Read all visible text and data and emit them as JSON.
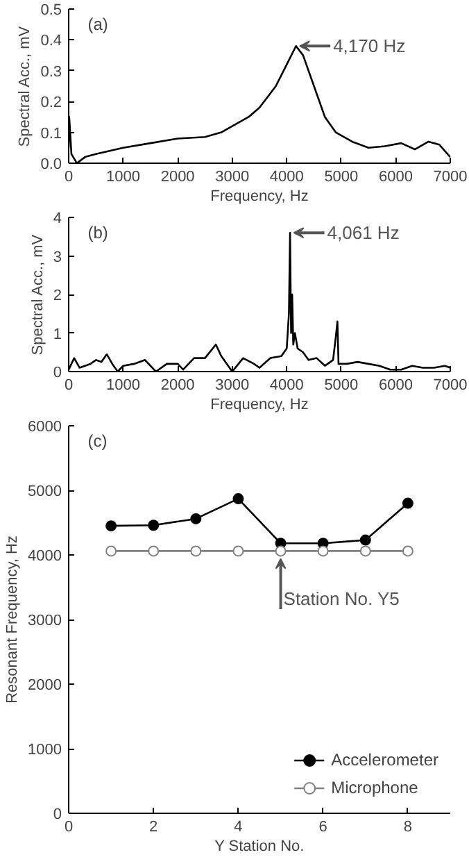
{
  "chart_data": [
    {
      "type": "line",
      "title": "(a)",
      "xlabel": "Frequency, Hz",
      "ylabel": "Spectral Acc., mV",
      "xlim": [
        0,
        7000
      ],
      "ylim": [
        0,
        0.5
      ],
      "xticks": [
        0,
        1000,
        2000,
        3000,
        4000,
        5000,
        6000,
        7000
      ],
      "yticks": [
        {
          "value": 0,
          "label": "0.0"
        },
        0.1,
        0.2,
        0.3,
        0.4,
        0.5
      ],
      "grid": false,
      "legend": false,
      "marker": "none",
      "x": [
        0,
        10,
        50,
        150,
        300,
        500,
        1000,
        1500,
        2000,
        2500,
        2800,
        3000,
        3300,
        3500,
        3800,
        4000,
        4170,
        4300,
        4500,
        4700,
        4900,
        5200,
        5500,
        5800,
        6100,
        6350,
        6600,
        6800,
        7000
      ],
      "series": [
        {
          "color": "#000000",
          "values": [
            0.05,
            0.15,
            0.03,
            0.0,
            0.02,
            0.03,
            0.05,
            0.065,
            0.08,
            0.085,
            0.1,
            0.12,
            0.15,
            0.18,
            0.25,
            0.32,
            0.38,
            0.35,
            0.25,
            0.15,
            0.1,
            0.07,
            0.05,
            0.055,
            0.065,
            0.045,
            0.07,
            0.06,
            0.02
          ]
        }
      ],
      "annotations": [
        {
          "text": "4,170 Hz",
          "x": 4170,
          "y": 0.38
        }
      ]
    },
    {
      "type": "line",
      "title": "(b)",
      "xlabel": "Frequency, Hz",
      "ylabel": "Spectral Acc., mV",
      "xlim": [
        0,
        7000
      ],
      "ylim": [
        0,
        4
      ],
      "xticks": [
        0,
        1000,
        2000,
        3000,
        4000,
        5000,
        6000,
        7000
      ],
      "yticks": [
        0,
        1,
        2,
        3,
        4
      ],
      "grid": false,
      "legend": false,
      "marker": "none",
      "x": [
        0,
        100,
        200,
        300,
        400,
        500,
        600,
        700,
        800,
        900,
        1000,
        1200,
        1400,
        1600,
        1800,
        2000,
        2100,
        2300,
        2500,
        2700,
        2800,
        3000,
        3200,
        3400,
        3500,
        3700,
        3900,
        4000,
        4040,
        4061,
        4080,
        4100,
        4120,
        4150,
        4200,
        4300,
        4400,
        4550,
        4700,
        4850,
        4900,
        4930,
        4950,
        5100,
        5300,
        5500,
        5700,
        5900,
        6100,
        6300,
        6500,
        6700,
        6900,
        7000
      ],
      "series": [
        {
          "color": "#000000",
          "values": [
            0.05,
            0.35,
            0.1,
            0.15,
            0.2,
            0.3,
            0.25,
            0.45,
            0.2,
            0.0,
            0.15,
            0.2,
            0.3,
            0.0,
            0.2,
            0.2,
            0.05,
            0.35,
            0.35,
            0.7,
            0.4,
            0.0,
            0.35,
            0.2,
            0.1,
            0.35,
            0.4,
            0.6,
            1.5,
            3.6,
            1.0,
            2.0,
            0.7,
            1.0,
            0.6,
            0.5,
            0.3,
            0.35,
            0.15,
            0.3,
            0.9,
            1.3,
            0.2,
            0.2,
            0.25,
            0.2,
            0.15,
            0.05,
            0.05,
            0.15,
            0.1,
            0.1,
            0.15,
            0.1
          ]
        }
      ],
      "annotations": [
        {
          "text": "4,061 Hz",
          "x": 4061,
          "y": 3.6
        }
      ]
    },
    {
      "type": "line",
      "title": "(c)",
      "xlabel": "Y Station No.",
      "ylabel": "Resonant Frequency, Hz",
      "xlim": [
        0,
        9
      ],
      "ylim": [
        0,
        6000
      ],
      "xticks": [
        0,
        2,
        4,
        6,
        8
      ],
      "yticks": [
        0,
        1000,
        2000,
        3000,
        4000,
        5000,
        6000
      ],
      "grid": false,
      "legend": "bottom right",
      "marker": "circle",
      "x": [
        1,
        2,
        3,
        4,
        5,
        6,
        7,
        8
      ],
      "series": [
        {
          "name": "Accelerometer",
          "color": "#000000",
          "values": [
            4450,
            4460,
            4560,
            4870,
            4180,
            4180,
            4230,
            4800
          ]
        },
        {
          "name": "Microphone",
          "color": "#808080",
          "values": [
            4060,
            4060,
            4060,
            4060,
            4060,
            4060,
            4060,
            4060
          ]
        }
      ],
      "annotations": [
        {
          "text": "Station No. Y5",
          "x": 5,
          "y": 4060
        }
      ]
    }
  ]
}
